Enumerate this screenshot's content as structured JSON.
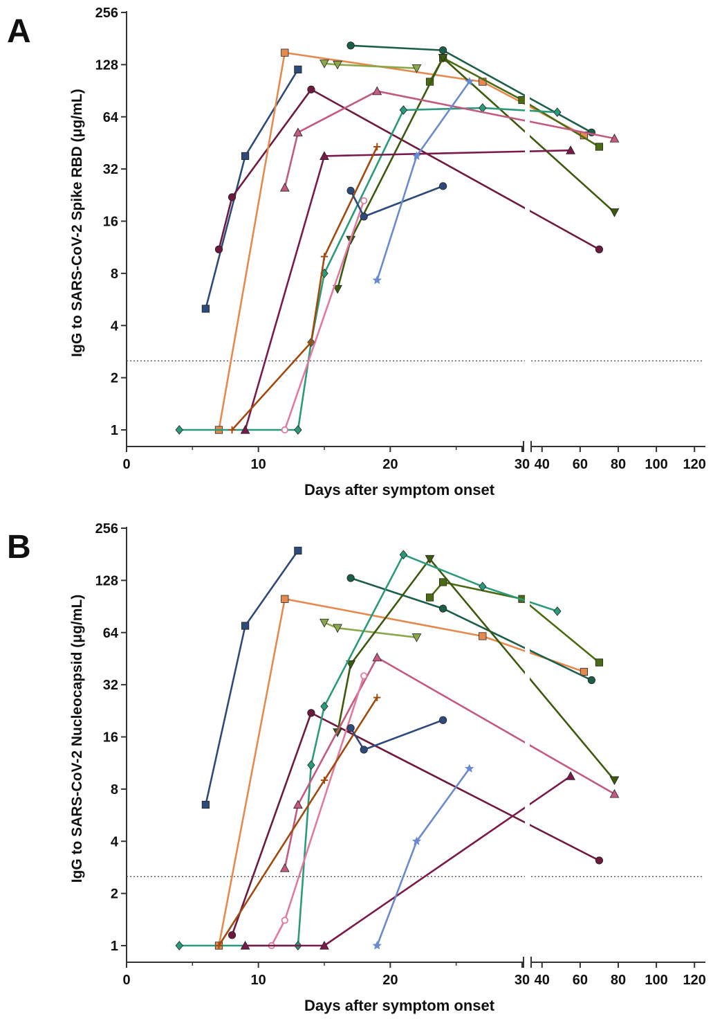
{
  "chart_data": [
    {
      "type": "line",
      "panel_label": "A",
      "ylabel": "IgG to SARS-CoV-2 Spike RBD (μg/mL)",
      "xlabel": "Days after symptom onset",
      "y_scale": "log2",
      "ylim": [
        0.85,
        256
      ],
      "y_ticks": [
        "1",
        "2",
        "4",
        "8",
        "16",
        "32",
        "64",
        "128",
        "256"
      ],
      "x_ticks_left": [
        "0",
        "10",
        "20",
        "30"
      ],
      "x_ticks_right": [
        "40",
        "60",
        "80",
        "100",
        "120"
      ],
      "x_axis_break": "between 30 and 35",
      "threshold": 2.5,
      "series": [
        {
          "color": "#2d4a7a",
          "marker": "square",
          "points": [
            [
              6,
              5
            ],
            [
              9,
              38
            ],
            [
              13,
              120
            ]
          ]
        },
        {
          "color": "#6e1a3e",
          "marker": "circle",
          "points": [
            [
              7,
              11
            ],
            [
              8,
              22
            ],
            [
              14,
              92
            ],
            [
              70,
              11
            ]
          ]
        },
        {
          "color": "#e58a4e",
          "marker": "square",
          "points": [
            [
              7,
              1
            ],
            [
              12,
              150
            ],
            [
              27,
              102
            ],
            [
              62,
              50
            ]
          ]
        },
        {
          "color": "#1b5e4a",
          "marker": "circle",
          "points": [
            [
              17,
              165
            ],
            [
              24,
              155
            ],
            [
              66,
              52
            ]
          ]
        },
        {
          "color": "#8aa84a",
          "marker": "triangle-down",
          "points": [
            [
              15,
              130
            ],
            [
              16,
              128
            ],
            [
              22,
              122
            ]
          ]
        },
        {
          "color": "#4a6b12",
          "marker": "square",
          "points": [
            [
              23,
              102
            ],
            [
              24,
              140
            ],
            [
              30,
              80
            ],
            [
              70,
              43
            ]
          ]
        },
        {
          "color": "#3b5a0e",
          "marker": "triangle-down",
          "points": [
            [
              16,
              6.5
            ],
            [
              17,
              12.5
            ],
            [
              24,
              140
            ],
            [
              78,
              18
            ]
          ]
        },
        {
          "color": "#2a9a7a",
          "marker": "diamond",
          "points": [
            [
              4,
              1
            ],
            [
              13,
              1
            ],
            [
              14,
              3.2
            ],
            [
              15,
              8
            ],
            [
              21,
              70
            ],
            [
              27,
              72
            ],
            [
              48,
              68
            ]
          ]
        },
        {
          "color": "#c25a82",
          "marker": "triangle",
          "points": [
            [
              12,
              25
            ],
            [
              13,
              52
            ],
            [
              19,
              90
            ],
            [
              78,
              48
            ]
          ]
        },
        {
          "color": "#e07aa0",
          "marker": "circle-open",
          "points": [
            [
              12,
              1
            ],
            [
              18,
              21
            ]
          ]
        },
        {
          "color": "#7a1a4a",
          "marker": "triangle",
          "points": [
            [
              9,
              1
            ],
            [
              15,
              38
            ],
            [
              55,
              41
            ]
          ]
        },
        {
          "color": "#a04a10",
          "marker": "plus",
          "points": [
            [
              8,
              1
            ],
            [
              14,
              3.2
            ],
            [
              15,
              10
            ],
            [
              19,
              43
            ]
          ]
        },
        {
          "color": "#2d4a7a",
          "marker": "circle",
          "points": [
            [
              17,
              24
            ],
            [
              18,
              17
            ],
            [
              24,
              25.5
            ]
          ]
        },
        {
          "color": "#6a8ad0",
          "marker": "star",
          "points": [
            [
              19,
              7.3
            ],
            [
              22,
              38
            ],
            [
              26,
              102
            ]
          ]
        }
      ]
    },
    {
      "type": "line",
      "panel_label": "B",
      "ylabel": "IgG to SARS-CoV-2 Nucleocapsid (μg/mL)",
      "xlabel": "Days after symptom onset",
      "y_scale": "log2",
      "ylim": [
        0.85,
        256
      ],
      "y_ticks": [
        "1",
        "2",
        "4",
        "8",
        "16",
        "32",
        "64",
        "128",
        "256"
      ],
      "x_ticks_left": [
        "0",
        "10",
        "20",
        "30"
      ],
      "x_ticks_right": [
        "40",
        "60",
        "80",
        "100",
        "120"
      ],
      "x_axis_break": "between 30 and 35",
      "threshold": 2.5,
      "series": [
        {
          "color": "#2d4a7a",
          "marker": "square",
          "points": [
            [
              6,
              6.5
            ],
            [
              9,
              70
            ],
            [
              13,
              190
            ]
          ]
        },
        {
          "color": "#6e1a3e",
          "marker": "circle",
          "points": [
            [
              8,
              1.15
            ],
            [
              14,
              22
            ],
            [
              70,
              3.1
            ]
          ]
        },
        {
          "color": "#e58a4e",
          "marker": "square",
          "points": [
            [
              7,
              1
            ],
            [
              12,
              100
            ],
            [
              27,
              61
            ],
            [
              62,
              38
            ]
          ]
        },
        {
          "color": "#1b5e4a",
          "marker": "circle",
          "points": [
            [
              17,
              132
            ],
            [
              24,
              88
            ],
            [
              66,
              34
            ]
          ]
        },
        {
          "color": "#8aa84a",
          "marker": "triangle-down",
          "points": [
            [
              15,
              73
            ],
            [
              16,
              68
            ],
            [
              22,
              60
            ]
          ]
        },
        {
          "color": "#4a6b12",
          "marker": "square",
          "points": [
            [
              23,
              102
            ],
            [
              24,
              125
            ],
            [
              30,
              100
            ],
            [
              70,
              43
            ]
          ]
        },
        {
          "color": "#3b5a0e",
          "marker": "triangle-down",
          "points": [
            [
              16,
              17
            ],
            [
              17,
              42
            ],
            [
              23,
              170
            ],
            [
              78,
              9
            ]
          ]
        },
        {
          "color": "#2a9a7a",
          "marker": "diamond",
          "points": [
            [
              4,
              1
            ],
            [
              13,
              1
            ],
            [
              14,
              11
            ],
            [
              15,
              24
            ],
            [
              21,
              180
            ],
            [
              27,
              118
            ],
            [
              48,
              85
            ]
          ]
        },
        {
          "color": "#c25a82",
          "marker": "triangle",
          "points": [
            [
              12,
              2.8
            ],
            [
              13,
              6.5
            ],
            [
              19,
              46
            ],
            [
              78,
              7.5
            ]
          ]
        },
        {
          "color": "#e07aa0",
          "marker": "circle-open",
          "points": [
            [
              11,
              1
            ],
            [
              12,
              1.4
            ],
            [
              18,
              36
            ]
          ]
        },
        {
          "color": "#7a1a4a",
          "marker": "triangle",
          "points": [
            [
              9,
              1
            ],
            [
              15,
              1
            ],
            [
              55,
              9.5
            ]
          ]
        },
        {
          "color": "#a04a10",
          "marker": "plus",
          "points": [
            [
              7,
              1
            ],
            [
              15,
              9
            ],
            [
              19,
              27
            ]
          ]
        },
        {
          "color": "#2d4a7a",
          "marker": "circle",
          "points": [
            [
              17,
              18
            ],
            [
              18,
              13.5
            ],
            [
              24,
              20
            ]
          ]
        },
        {
          "color": "#6a8ad0",
          "marker": "star",
          "points": [
            [
              19,
              1
            ],
            [
              22,
              4
            ],
            [
              26,
              10.5
            ]
          ]
        }
      ]
    }
  ]
}
